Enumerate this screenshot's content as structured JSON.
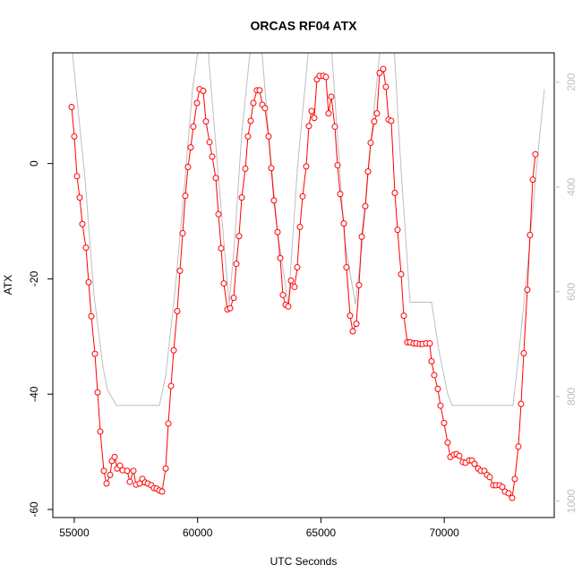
{
  "chart_data": {
    "type": "line",
    "title": "ORCAS RF04 ATX",
    "x_label": "UTC Seconds",
    "y_label": "ATX",
    "xlim": [
      54130,
      74460
    ],
    "xticks": [
      55000,
      60000,
      65000,
      70000
    ],
    "ylim": [
      -61.4,
      19.2
    ],
    "yticks": [
      -60,
      -40,
      -20,
      0
    ],
    "y2lim": [
      1031,
      144
    ],
    "y2ticks": [
      200,
      400,
      600,
      800,
      1000
    ],
    "y2_color": "#bebebe",
    "series": [
      {
        "color": "#bebebe",
        "axis": "y2",
        "marker": "none",
        "x": [
          54892,
          55437,
          55800,
          56163,
          56344,
          56707,
          58450,
          58704,
          59067,
          59430,
          59793,
          60047,
          60410,
          60700,
          61063,
          61281,
          61499,
          61789,
          62152,
          62588,
          62878,
          63241,
          63677,
          64040,
          64512,
          65420,
          65964,
          66400,
          66690,
          67053,
          67416,
          67961,
          68251,
          68614,
          69485,
          69775,
          70138,
          70320,
          72788,
          73042,
          73405,
          73768,
          74058
        ],
        "values": [
          130,
          385,
          607,
          744,
          787,
          817,
          817,
          761,
          607,
          419,
          214,
          130,
          130,
          299,
          504,
          624,
          504,
          299,
          130,
          130,
          299,
          487,
          624,
          368,
          130,
          130,
          504,
          624,
          504,
          299,
          130,
          130,
          368,
          620,
          620,
          710,
          795,
          817,
          817,
          710,
          539,
          351,
          214
        ]
      },
      {
        "color": "#ff0000",
        "marker": "circle",
        "x": [
          54892,
          55001,
          55110,
          55219,
          55328,
          55473,
          55582,
          55691,
          55836,
          55945,
          56054,
          56199,
          56308,
          56453,
          56526,
          56635,
          56744,
          56853,
          56961,
          57143,
          57252,
          57397,
          57506,
          57651,
          57760,
          57869,
          57978,
          58123,
          58232,
          58341,
          58450,
          58559,
          58704,
          58813,
          58922,
          59031,
          59176,
          59285,
          59394,
          59502,
          59611,
          59720,
          59829,
          59974,
          60083,
          60228,
          60337,
          60483,
          60591,
          60737,
          60846,
          60954,
          61063,
          61209,
          61317,
          61463,
          61572,
          61680,
          61789,
          61935,
          62043,
          62152,
          62261,
          62406,
          62515,
          62624,
          62733,
          62878,
          62987,
          63096,
          63241,
          63350,
          63459,
          63568,
          63677,
          63786,
          63931,
          64040,
          64149,
          64258,
          64403,
          64512,
          64621,
          64730,
          64839,
          64947,
          65093,
          65202,
          65310,
          65419,
          65565,
          65673,
          65782,
          65928,
          66036,
          66182,
          66291,
          66436,
          66545,
          66654,
          66799,
          66908,
          67017,
          67162,
          67271,
          67380,
          67525,
          67634,
          67743,
          67851,
          67997,
          68106,
          68251,
          68360,
          68505,
          68614,
          68759,
          68868,
          69013,
          69122,
          69267,
          69412,
          69485,
          69594,
          69739,
          69848,
          69993,
          70138,
          70247,
          70392,
          70501,
          70610,
          70755,
          70864,
          71010,
          71118,
          71227,
          71373,
          71481,
          71627,
          71736,
          71844,
          71990,
          72099,
          72244,
          72353,
          72462,
          72607,
          72752,
          72861,
          73006,
          73115,
          73224,
          73369,
          73478,
          73587,
          73696
        ],
        "values": [
          9.8,
          4.7,
          -2.2,
          -5.9,
          -10.5,
          -14.6,
          -20.6,
          -26.5,
          -33.0,
          -39.7,
          -46.5,
          -53.3,
          -55.5,
          -54.0,
          -51.6,
          -50.9,
          -52.9,
          -52.4,
          -53.2,
          -53.3,
          -55.2,
          -53.3,
          -55.7,
          -55.5,
          -54.7,
          -55.3,
          -55.5,
          -55.8,
          -56.3,
          -56.4,
          -56.7,
          -56.9,
          -52.9,
          -45.1,
          -38.6,
          -32.4,
          -25.6,
          -18.6,
          -12.1,
          -5.6,
          -0.6,
          2.8,
          6.4,
          10.5,
          12.9,
          12.6,
          7.3,
          3.7,
          1.2,
          -2.5,
          -8.8,
          -14.7,
          -20.8,
          -25.3,
          -25.1,
          -23.3,
          -17.4,
          -12.6,
          -5.9,
          -0.9,
          4.7,
          7.4,
          10.5,
          12.7,
          12.7,
          10.2,
          9.6,
          4.7,
          -0.8,
          -6.4,
          -11.9,
          -16.4,
          -22.8,
          -24.5,
          -24.8,
          -20.3,
          -21.4,
          -18.0,
          -11.0,
          -5.7,
          -0.5,
          6.5,
          9.1,
          7.9,
          14.6,
          15.2,
          15.2,
          15.0,
          8.7,
          11.6,
          6.4,
          -0.3,
          -5.3,
          -10.4,
          -18.0,
          -26.4,
          -29.1,
          -27.8,
          -21.1,
          -12.7,
          -7.4,
          -1.4,
          3.6,
          7.3,
          8.7,
          15.7,
          16.4,
          13.3,
          7.6,
          7.4,
          -5.1,
          -11.5,
          -19.2,
          -26.4,
          -31.0,
          -31.0,
          -31.2,
          -31.2,
          -31.3,
          -31.3,
          -31.2,
          -31.2,
          -34.3,
          -36.7,
          -39.1,
          -42.0,
          -45.0,
          -48.4,
          -50.9,
          -50.5,
          -50.4,
          -50.7,
          -51.8,
          -51.9,
          -51.5,
          -51.5,
          -52.1,
          -52.9,
          -53.3,
          -53.3,
          -54.0,
          -54.4,
          -55.8,
          -55.8,
          -55.8,
          -56.1,
          -56.9,
          -57.2,
          -58.0,
          -54.7,
          -49.1,
          -41.7,
          -32.9,
          -21.9,
          -12.4,
          -2.8,
          1.6
        ]
      }
    ]
  }
}
